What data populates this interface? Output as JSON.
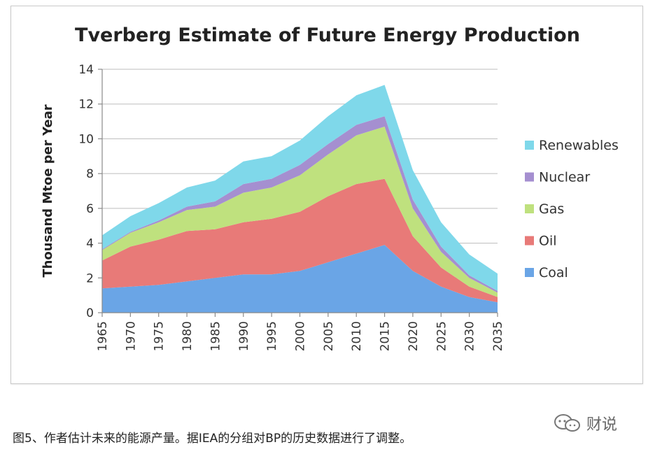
{
  "chart_data": {
    "type": "area",
    "stacked": true,
    "title": "Tverberg Estimate of Future Energy Production",
    "ylabel": "Thousand Mtoe per Year",
    "xlabel": "",
    "ylim": [
      0,
      14
    ],
    "yticks": [
      0,
      2,
      4,
      6,
      8,
      10,
      12,
      14
    ],
    "xticks": [
      "1965",
      "1970",
      "1975",
      "1980",
      "1985",
      "1990",
      "1995",
      "2000",
      "2005",
      "2010",
      "2015",
      "2020",
      "2025",
      "2030",
      "2035"
    ],
    "x": [
      1965,
      1970,
      1975,
      1980,
      1985,
      1990,
      1995,
      2000,
      2005,
      2010,
      2015,
      2020,
      2025,
      2030,
      2035
    ],
    "grid": "horizontal",
    "legend_position": "right",
    "series": [
      {
        "name": "Coal",
        "color": "#6aa5e6",
        "values": [
          1.4,
          1.5,
          1.6,
          1.8,
          2.0,
          2.2,
          2.2,
          2.4,
          2.9,
          3.4,
          3.9,
          2.4,
          1.5,
          0.9,
          0.6
        ]
      },
      {
        "name": "Oil",
        "color": "#e87a78",
        "values": [
          1.6,
          2.3,
          2.6,
          2.9,
          2.8,
          3.0,
          3.2,
          3.4,
          3.8,
          4.0,
          3.8,
          2.0,
          1.1,
          0.6,
          0.3
        ]
      },
      {
        "name": "Gas",
        "color": "#bfe17e",
        "values": [
          0.6,
          0.8,
          1.0,
          1.2,
          1.3,
          1.7,
          1.8,
          2.1,
          2.4,
          2.8,
          3.0,
          1.6,
          0.9,
          0.5,
          0.25
        ]
      },
      {
        "name": "Nuclear",
        "color": "#a58fd0",
        "values": [
          0.05,
          0.05,
          0.1,
          0.2,
          0.3,
          0.5,
          0.5,
          0.6,
          0.6,
          0.6,
          0.6,
          0.5,
          0.3,
          0.15,
          0.1
        ]
      },
      {
        "name": "Renewables",
        "color": "#7fd8ea",
        "values": [
          0.8,
          0.9,
          1.0,
          1.1,
          1.2,
          1.3,
          1.3,
          1.4,
          1.6,
          1.7,
          1.8,
          1.7,
          1.4,
          1.2,
          1.0
        ]
      }
    ],
    "legend_order": [
      "Renewables",
      "Nuclear",
      "Gas",
      "Oil",
      "Coal"
    ]
  },
  "caption": "图5、作者估计未来的能源产量。据IEA的分组对BP的历史数据进行了调整。",
  "watermark": {
    "text": "财说",
    "icon": "chat-bubbles-icon"
  }
}
